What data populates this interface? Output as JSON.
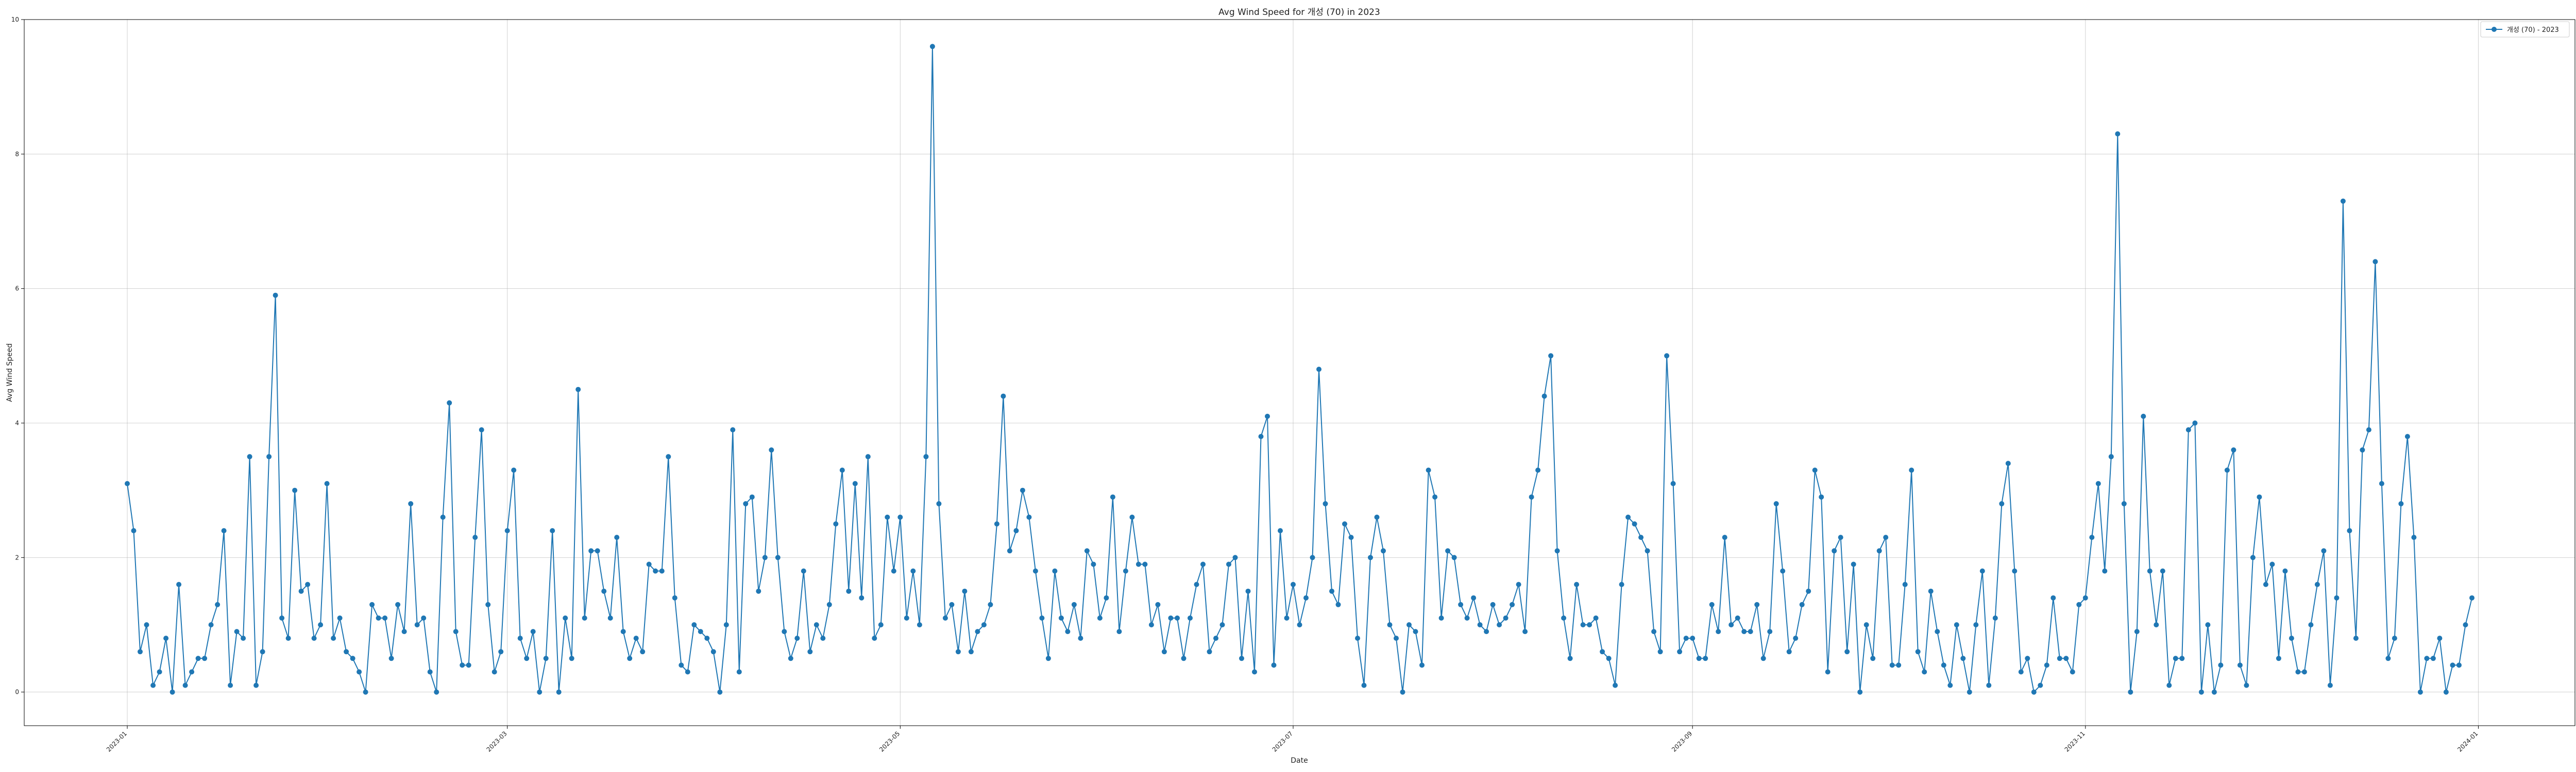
{
  "chart_data": {
    "type": "line",
    "title": "Avg Wind Speed for 개성 (70) in 2023",
    "xlabel": "Date",
    "ylabel": "Avg Wind Speed",
    "x_start": "2023-01-01",
    "x_end": "2023-12-31",
    "xlim": [
      "2022-12-16",
      "2024-01-16"
    ],
    "ylim": [
      -0.5,
      10.0
    ],
    "yticks": [
      0,
      2,
      4,
      6,
      8,
      10
    ],
    "xticks": [
      "2023-01",
      "2023-03",
      "2023-05",
      "2023-07",
      "2023-09",
      "2023-11",
      "2024-01"
    ],
    "xtick_dates": [
      "2023-01-01",
      "2023-03-01",
      "2023-05-01",
      "2023-07-01",
      "2023-09-01",
      "2023-11-01",
      "2024-01-01"
    ],
    "grid": true,
    "legend": {
      "placement": "top-right",
      "entries": [
        "개성 (70) - 2023"
      ]
    },
    "series": [
      {
        "name": "개성 (70) - 2023",
        "color": "#1f77b4",
        "marker": "circle",
        "values": [
          3.1,
          2.4,
          0.6,
          1.0,
          0.1,
          0.3,
          0.8,
          0.0,
          1.6,
          0.1,
          0.3,
          0.5,
          0.5,
          1.0,
          1.3,
          2.4,
          0.1,
          0.9,
          0.8,
          3.5,
          0.1,
          0.6,
          3.5,
          5.9,
          1.1,
          0.8,
          3.0,
          1.5,
          1.6,
          0.8,
          1.0,
          3.1,
          0.8,
          1.1,
          0.6,
          0.5,
          0.3,
          0.0,
          1.3,
          1.1,
          1.1,
          0.5,
          1.3,
          0.9,
          2.8,
          1.0,
          1.1,
          0.3,
          0.0,
          2.6,
          4.3,
          0.9,
          0.4,
          0.4,
          2.3,
          3.9,
          1.3,
          0.3,
          0.6,
          2.4,
          3.3,
          0.8,
          0.5,
          0.9,
          0.0,
          0.5,
          2.4,
          0.0,
          1.1,
          0.5,
          4.5,
          1.1,
          2.1,
          2.1,
          1.5,
          1.1,
          2.3,
          0.9,
          0.5,
          0.8,
          0.6,
          1.9,
          1.8,
          1.8,
          3.5,
          1.4,
          0.4,
          0.3,
          1.0,
          0.9,
          0.8,
          0.6,
          0.0,
          1.0,
          3.9,
          0.3,
          2.8,
          2.9,
          1.5,
          2.0,
          3.6,
          2.0,
          0.9,
          0.5,
          0.8,
          1.8,
          0.6,
          1.0,
          0.8,
          1.3,
          2.5,
          3.3,
          1.5,
          3.1,
          1.4,
          3.5,
          0.8,
          1.0,
          2.6,
          1.8,
          2.6,
          1.1,
          1.8,
          1.0,
          3.5,
          9.6,
          2.8,
          1.1,
          1.3,
          0.6,
          1.5,
          0.6,
          0.9,
          1.0,
          1.3,
          2.5,
          4.4,
          2.1,
          2.4,
          3.0,
          2.6,
          1.8,
          1.1,
          0.5,
          1.8,
          1.1,
          0.9,
          1.3,
          0.8,
          2.1,
          1.9,
          1.1,
          1.4,
          2.9,
          0.9,
          1.8,
          2.6,
          1.9,
          1.9,
          1.0,
          1.3,
          0.6,
          1.1,
          1.1,
          0.5,
          1.1,
          1.6,
          1.9,
          0.6,
          0.8,
          1.0,
          1.9,
          2.0,
          0.5,
          1.5,
          0.3,
          3.8,
          4.1,
          0.4,
          2.4,
          1.1,
          1.6,
          1.0,
          1.4,
          2.0,
          4.8,
          2.8,
          1.5,
          1.3,
          2.5,
          2.3,
          0.8,
          0.1,
          2.0,
          2.6,
          2.1,
          1.0,
          0.8,
          0.0,
          1.0,
          0.9,
          0.4,
          3.3,
          2.9,
          1.1,
          2.1,
          2.0,
          1.3,
          1.1,
          1.4,
          1.0,
          0.9,
          1.3,
          1.0,
          1.1,
          1.3,
          1.6,
          0.9,
          2.9,
          3.3,
          4.4,
          5.0,
          2.1,
          1.1,
          0.5,
          1.6,
          1.0,
          1.0,
          1.1,
          0.6,
          0.5,
          0.1,
          1.6,
          2.6,
          2.5,
          2.3,
          2.1,
          0.9,
          0.6,
          5.0,
          3.1,
          0.6,
          0.8,
          0.8,
          0.5,
          0.5,
          1.3,
          0.9,
          2.3,
          1.0,
          1.1,
          0.9,
          0.9,
          1.3,
          0.5,
          0.9,
          2.8,
          1.8,
          0.6,
          0.8,
          1.3,
          1.5,
          3.3,
          2.9,
          0.3,
          2.1,
          2.3,
          0.6,
          1.9,
          0.0,
          1.0,
          0.5,
          2.1,
          2.3,
          0.4,
          0.4,
          1.6,
          3.3,
          0.6,
          0.3,
          1.5,
          0.9,
          0.4,
          0.1,
          1.0,
          0.5,
          0.0,
          1.0,
          1.8,
          0.1,
          1.1,
          2.8,
          3.4,
          1.8,
          0.3,
          0.5,
          0.0,
          0.1,
          0.4,
          1.4,
          0.5,
          0.5,
          0.3,
          1.3,
          1.4,
          2.3,
          3.1,
          1.8,
          3.5,
          8.3,
          2.8,
          0.0,
          0.9,
          4.1,
          1.8,
          1.0,
          1.8,
          0.1,
          0.5,
          0.5,
          3.9,
          4.0,
          0.0,
          1.0,
          0.0,
          0.4,
          3.3,
          3.6,
          0.4,
          0.1,
          2.0,
          2.9,
          1.6,
          1.9,
          0.5,
          1.8,
          0.8,
          0.3,
          0.3,
          1.0,
          1.6,
          2.1,
          0.1,
          1.4,
          7.3,
          2.4,
          0.8,
          3.6,
          3.9,
          6.4,
          3.1,
          0.5,
          0.8,
          2.8,
          3.8,
          2.3,
          0.0,
          0.5,
          0.5,
          0.8,
          0.0,
          0.4,
          0.4,
          1.0,
          1.4
        ]
      }
    ]
  }
}
